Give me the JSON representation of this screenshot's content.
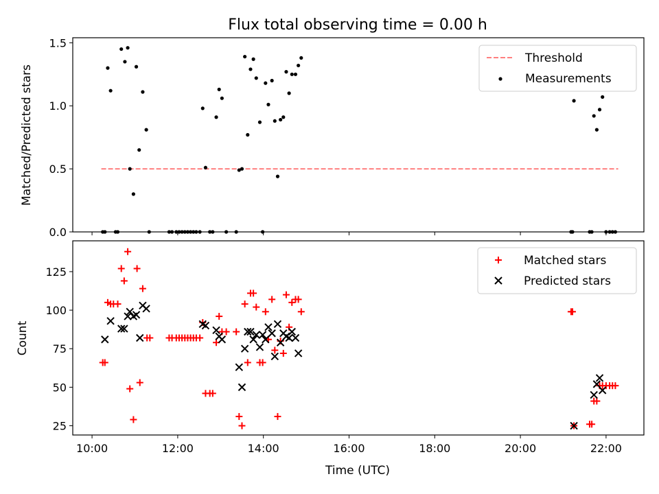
{
  "figure": {
    "title": "Flux total observing time = 0.00 h"
  },
  "top_panel": {
    "ylabel": "Matched/Predicted stars",
    "legend": {
      "threshold_label": "Threshold",
      "measurements_label": "Measurements"
    }
  },
  "bottom_panel": {
    "ylabel": "Count",
    "xlabel": "Time (UTC)",
    "legend": {
      "matched_label": "Matched stars",
      "predicted_label": "Predicted stars"
    }
  },
  "colors": {
    "threshold": "#ff7f7f",
    "measurements": "#000000",
    "matched": "#ff0000",
    "predicted": "#000000"
  },
  "chart_data": [
    {
      "type": "scatter",
      "title": "Flux total observing time = 0.00 h",
      "ylabel": "Matched/Predicted stars",
      "xlim": [
        "09:33",
        "22:53"
      ],
      "ylim": [
        0,
        1.54
      ],
      "yticks": [
        0.0,
        0.5,
        1.0,
        1.5
      ],
      "ytick_labels": [
        "0.0",
        "0.5",
        "1.0",
        "1.5"
      ],
      "legend_position": "upper right",
      "threshold": {
        "name": "Threshold",
        "style": "dashed",
        "y": 0.5,
        "x": [
          "10:13",
          "22:17"
        ]
      },
      "series": [
        {
          "name": "Measurements",
          "marker": "dot",
          "points": [
            [
              "10:15",
              0.0
            ],
            [
              "10:18",
              0.0
            ],
            [
              "10:22",
              1.3
            ],
            [
              "10:26",
              1.12
            ],
            [
              "10:33",
              0.0
            ],
            [
              "10:36",
              0.0
            ],
            [
              "10:41",
              1.45
            ],
            [
              "10:46",
              1.35
            ],
            [
              "10:50",
              1.46
            ],
            [
              "10:53",
              0.5
            ],
            [
              "10:58",
              0.3
            ],
            [
              "11:02",
              1.31
            ],
            [
              "11:06",
              0.65
            ],
            [
              "11:11",
              1.11
            ],
            [
              "11:16",
              0.81
            ],
            [
              "11:20",
              0.0
            ],
            [
              "11:48",
              0.0
            ],
            [
              "11:52",
              0.0
            ],
            [
              "11:58",
              0.0
            ],
            [
              "12:02",
              0.0
            ],
            [
              "12:06",
              0.0
            ],
            [
              "12:10",
              0.0
            ],
            [
              "12:14",
              0.0
            ],
            [
              "12:18",
              0.0
            ],
            [
              "12:22",
              0.0
            ],
            [
              "12:26",
              0.0
            ],
            [
              "12:31",
              0.0
            ],
            [
              "12:35",
              0.98
            ],
            [
              "12:39",
              0.51
            ],
            [
              "12:45",
              0.0
            ],
            [
              "12:49",
              0.0
            ],
            [
              "12:54",
              0.91
            ],
            [
              "12:58",
              1.13
            ],
            [
              "13:02",
              1.06
            ],
            [
              "13:08",
              0.0
            ],
            [
              "13:22",
              0.0
            ],
            [
              "13:26",
              0.49
            ],
            [
              "13:30",
              0.5
            ],
            [
              "13:34",
              1.39
            ],
            [
              "13:38",
              0.77
            ],
            [
              "13:42",
              1.29
            ],
            [
              "13:46",
              1.37
            ],
            [
              "13:50",
              1.22
            ],
            [
              "13:55",
              0.87
            ],
            [
              "13:59",
              0.0
            ],
            [
              "14:03",
              1.18
            ],
            [
              "14:07",
              1.01
            ],
            [
              "14:12",
              1.2
            ],
            [
              "14:16",
              0.88
            ],
            [
              "14:20",
              0.44
            ],
            [
              "14:24",
              0.89
            ],
            [
              "14:28",
              0.91
            ],
            [
              "14:32",
              1.27
            ],
            [
              "14:36",
              1.1
            ],
            [
              "14:40",
              1.25
            ],
            [
              "14:45",
              1.25
            ],
            [
              "14:49",
              1.32
            ],
            [
              "14:53",
              1.38
            ],
            [
              "21:11",
              0.0
            ],
            [
              "21:13",
              0.0
            ],
            [
              "21:15",
              1.04
            ],
            [
              "21:37",
              0.0
            ],
            [
              "21:40",
              0.0
            ],
            [
              "21:43",
              0.92
            ],
            [
              "21:47",
              0.81
            ],
            [
              "21:51",
              0.97
            ],
            [
              "21:55",
              1.07
            ],
            [
              "22:00",
              0.0
            ],
            [
              "22:05",
              0.0
            ],
            [
              "22:09",
              0.0
            ],
            [
              "22:13",
              0.0
            ]
          ]
        }
      ]
    },
    {
      "type": "scatter",
      "xlabel": "Time (UTC)",
      "ylabel": "Count",
      "xlim": [
        "09:33",
        "22:53"
      ],
      "ylim": [
        19,
        145
      ],
      "xticks": [
        "10:00",
        "12:00",
        "14:00",
        "16:00",
        "18:00",
        "20:00",
        "22:00"
      ],
      "yticks": [
        25,
        50,
        75,
        100,
        125
      ],
      "ytick_labels": [
        "25",
        "50",
        "75",
        "100",
        "125"
      ],
      "legend_position": "upper right",
      "series": [
        {
          "name": "Matched stars",
          "marker": "plus",
          "points": [
            [
              "10:15",
              66
            ],
            [
              "10:18",
              66
            ],
            [
              "10:22",
              105
            ],
            [
              "10:26",
              104
            ],
            [
              "10:30",
              104
            ],
            [
              "10:36",
              104
            ],
            [
              "10:41",
              127
            ],
            [
              "10:45",
              119
            ],
            [
              "10:50",
              138
            ],
            [
              "10:53",
              49
            ],
            [
              "10:58",
              29
            ],
            [
              "11:03",
              127
            ],
            [
              "11:07",
              53
            ],
            [
              "11:11",
              114
            ],
            [
              "11:17",
              82
            ],
            [
              "11:21",
              82
            ],
            [
              "11:48",
              82
            ],
            [
              "11:52",
              82
            ],
            [
              "11:58",
              82
            ],
            [
              "12:02",
              82
            ],
            [
              "12:06",
              82
            ],
            [
              "12:10",
              82
            ],
            [
              "12:14",
              82
            ],
            [
              "12:18",
              82
            ],
            [
              "12:22",
              82
            ],
            [
              "12:26",
              82
            ],
            [
              "12:31",
              82
            ],
            [
              "12:35",
              92
            ],
            [
              "12:39",
              46
            ],
            [
              "12:45",
              46
            ],
            [
              "12:49",
              46
            ],
            [
              "12:54",
              79
            ],
            [
              "12:58",
              96
            ],
            [
              "13:02",
              86
            ],
            [
              "13:08",
              86
            ],
            [
              "13:22",
              86
            ],
            [
              "13:26",
              31
            ],
            [
              "13:30",
              25
            ],
            [
              "13:34",
              104
            ],
            [
              "13:38",
              66
            ],
            [
              "13:42",
              111
            ],
            [
              "13:46",
              111
            ],
            [
              "13:50",
              102
            ],
            [
              "13:55",
              66
            ],
            [
              "13:59",
              66
            ],
            [
              "14:03",
              99
            ],
            [
              "14:07",
              81
            ],
            [
              "14:12",
              107
            ],
            [
              "14:16",
              74
            ],
            [
              "14:20",
              31
            ],
            [
              "14:24",
              80
            ],
            [
              "14:28",
              72
            ],
            [
              "14:32",
              110
            ],
            [
              "14:36",
              89
            ],
            [
              "14:40",
              105
            ],
            [
              "14:45",
              107
            ],
            [
              "14:49",
              107
            ],
            [
              "14:53",
              99
            ],
            [
              "21:11",
              99
            ],
            [
              "21:13",
              99
            ],
            [
              "21:15",
              25
            ],
            [
              "21:37",
              26
            ],
            [
              "21:40",
              26
            ],
            [
              "21:43",
              41
            ],
            [
              "21:47",
              41
            ],
            [
              "21:51",
              51
            ],
            [
              "21:55",
              51
            ],
            [
              "22:00",
              51
            ],
            [
              "22:05",
              51
            ],
            [
              "22:09",
              51
            ],
            [
              "22:13",
              51
            ]
          ]
        },
        {
          "name": "Predicted stars",
          "marker": "x",
          "points": [
            [
              "10:18",
              81
            ],
            [
              "10:26",
              93
            ],
            [
              "10:41",
              88
            ],
            [
              "10:45",
              88
            ],
            [
              "10:50",
              96
            ],
            [
              "10:53",
              99
            ],
            [
              "10:58",
              96
            ],
            [
              "11:02",
              97
            ],
            [
              "11:07",
              82
            ],
            [
              "11:11",
              103
            ],
            [
              "11:16",
              101
            ],
            [
              "12:35",
              91
            ],
            [
              "12:39",
              90
            ],
            [
              "12:54",
              87
            ],
            [
              "12:58",
              83
            ],
            [
              "13:02",
              81
            ],
            [
              "13:26",
              63
            ],
            [
              "13:30",
              50
            ],
            [
              "13:34",
              75
            ],
            [
              "13:38",
              86
            ],
            [
              "13:42",
              86
            ],
            [
              "13:46",
              81
            ],
            [
              "13:50",
              84
            ],
            [
              "13:55",
              76
            ],
            [
              "13:59",
              84
            ],
            [
              "14:03",
              81
            ],
            [
              "14:07",
              89
            ],
            [
              "14:12",
              85
            ],
            [
              "14:16",
              70
            ],
            [
              "14:20",
              91
            ],
            [
              "14:24",
              79
            ],
            [
              "14:28",
              85
            ],
            [
              "14:32",
              83
            ],
            [
              "14:36",
              82
            ],
            [
              "14:40",
              86
            ],
            [
              "14:45",
              82
            ],
            [
              "14:49",
              72
            ],
            [
              "21:15",
              25
            ],
            [
              "21:43",
              45
            ],
            [
              "21:47",
              52
            ],
            [
              "21:51",
              56
            ],
            [
              "21:55",
              48
            ]
          ]
        }
      ]
    }
  ]
}
